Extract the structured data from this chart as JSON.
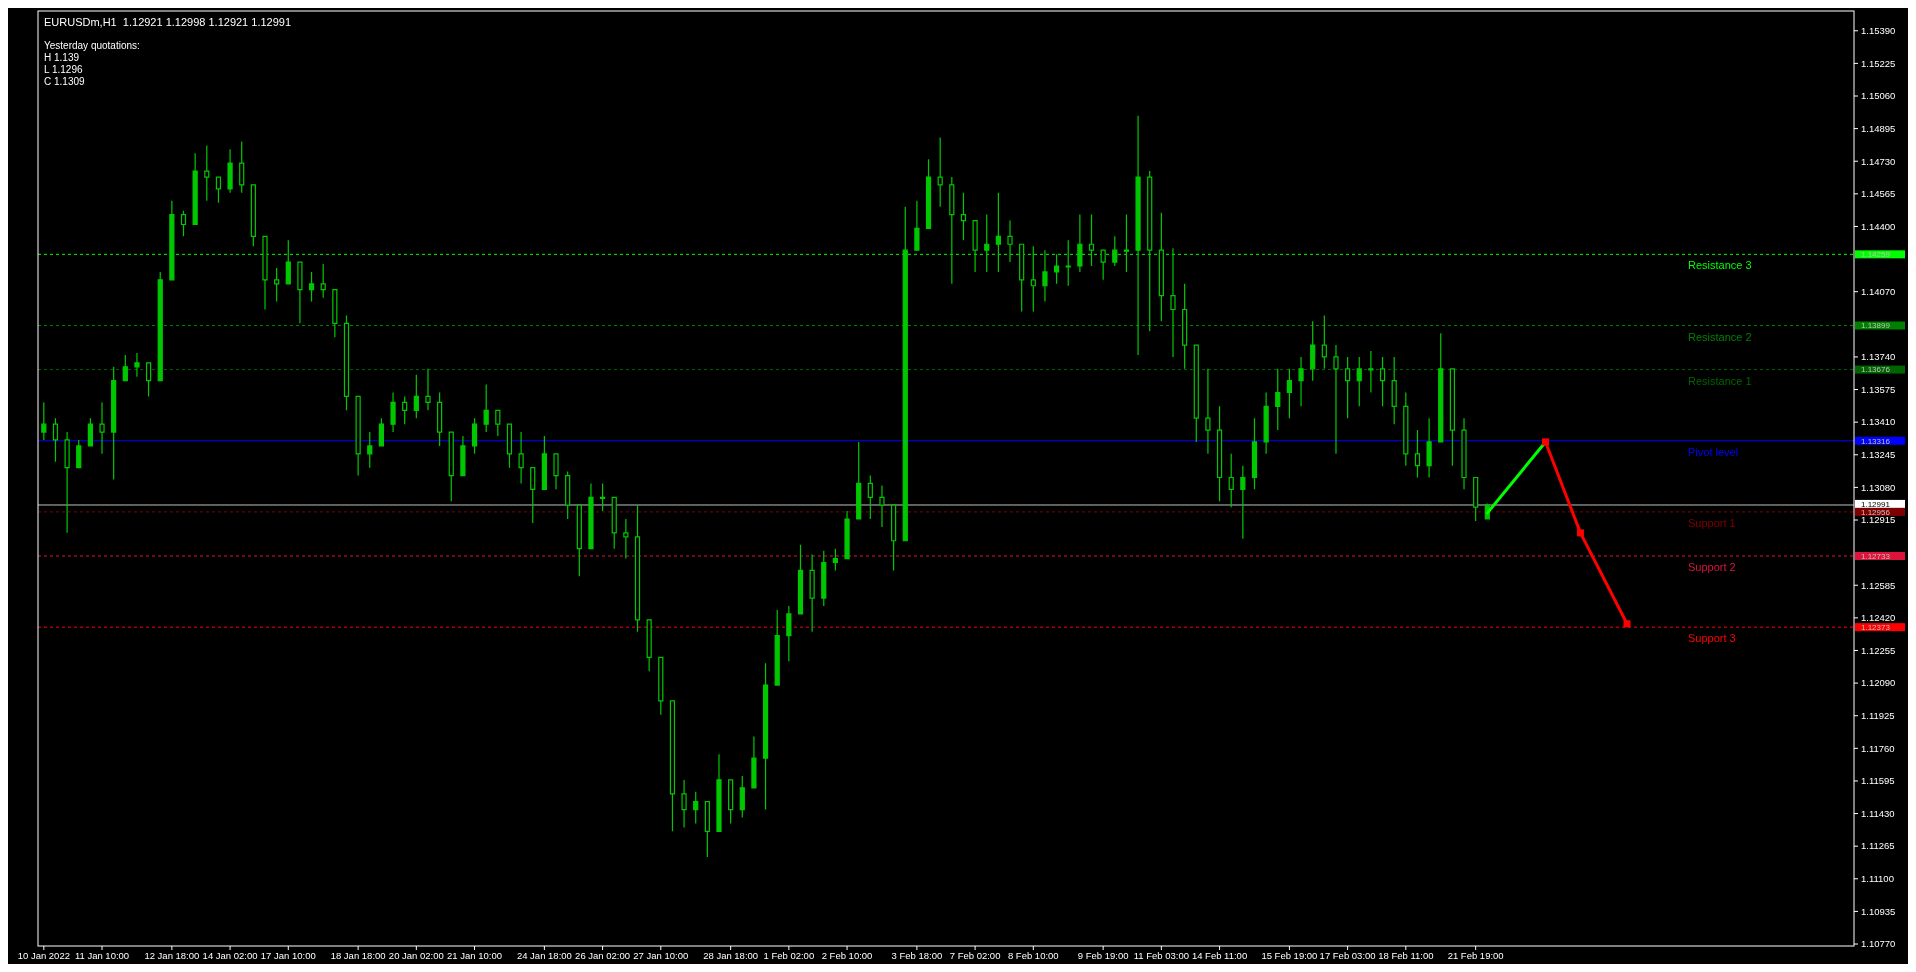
{
  "chart_data": {
    "type": "candlestick",
    "title": "EURUSDm,H1  1.12921 1.12998 1.12921 1.12991",
    "color": "#00c800",
    "grid": false,
    "annotations": [
      "Yesterday quotations:",
      "H 1.139",
      "L 1.1296",
      "C 1.1309",
      "1.14259",
      "1.13899",
      "1.13676",
      "1.13316",
      "1.12991",
      "1.12956",
      "1.12733",
      "1.12373"
    ],
    "ylim": [
      1.1076,
      1.1549
    ],
    "categories": [
      "10 Jan 2022",
      null,
      null,
      null,
      null,
      "11 Jan 10:00",
      null,
      null,
      null,
      null,
      null,
      "12 Jan 18:00",
      null,
      null,
      null,
      null,
      "14 Jan 02:00",
      null,
      null,
      null,
      null,
      "17 Jan 10:00",
      null,
      null,
      null,
      null,
      null,
      "18 Jan 18:00",
      null,
      null,
      null,
      null,
      "20 Jan 02:00",
      null,
      null,
      null,
      null,
      "21 Jan 10:00",
      null,
      null,
      null,
      null,
      null,
      "24 Jan 18:00",
      null,
      null,
      null,
      null,
      "26 Jan 02:00",
      null,
      null,
      null,
      null,
      "27 Jan 10:00",
      null,
      null,
      null,
      null,
      null,
      "28 Jan 18:00",
      null,
      null,
      null,
      null,
      "1 Feb 02:00",
      null,
      null,
      null,
      null,
      "2 Feb 10:00",
      null,
      null,
      null,
      null,
      null,
      "3 Feb 18:00",
      null,
      null,
      null,
      null,
      "7 Feb 02:00",
      null,
      null,
      null,
      null,
      "8 Feb 10:00",
      null,
      null,
      null,
      null,
      null,
      "9 Feb 19:00",
      null,
      null,
      null,
      null,
      "11 Feb 03:00",
      null,
      null,
      null,
      null,
      "14 Feb 11:00",
      null,
      null,
      null,
      null,
      null,
      "15 Feb 19:00",
      null,
      null,
      null,
      null,
      "17 Feb 03:00",
      null,
      null,
      null,
      null,
      "18 Feb 11:00",
      null,
      null,
      null,
      null,
      null,
      "21 Feb 19:00",
      null,
      null,
      null,
      null,
      null,
      null,
      null,
      null,
      null,
      null,
      null,
      null,
      null,
      null,
      null,
      null,
      null,
      null,
      null,
      null,
      null,
      null,
      null,
      null,
      null,
      null,
      null,
      null,
      null,
      null,
      null,
      null
    ],
    "yticks": [
      {
        "value": 1.1539,
        "label": "1.15390"
      },
      {
        "value": 1.15225,
        "label": "1.15225"
      },
      {
        "value": 1.1506,
        "label": "1.15060"
      },
      {
        "value": 1.14895,
        "label": "1.14895"
      },
      {
        "value": 1.1473,
        "label": "1.14730"
      },
      {
        "value": 1.14565,
        "label": "1.14565"
      },
      {
        "value": 1.144,
        "label": "1.14400"
      },
      {
        "value": 1.1407,
        "label": "1.14070"
      },
      {
        "value": 1.1374,
        "label": "1.13740"
      },
      {
        "value": 1.13575,
        "label": "1.13575"
      },
      {
        "value": 1.1341,
        "label": "1.13410"
      },
      {
        "value": 1.13245,
        "label": "1.13245"
      },
      {
        "value": 1.1308,
        "label": "1.13080"
      },
      {
        "value": 1.12915,
        "label": "1.12915"
      },
      {
        "value": 1.12585,
        "label": "1.12585"
      },
      {
        "value": 1.1242,
        "label": "1.12420"
      },
      {
        "value": 1.12255,
        "label": "1.12255"
      },
      {
        "value": 1.1209,
        "label": "1.12090"
      },
      {
        "value": 1.11925,
        "label": "1.11925"
      },
      {
        "value": 1.1176,
        "label": "1.11760"
      },
      {
        "value": 1.11595,
        "label": "1.11595"
      },
      {
        "value": 1.1143,
        "label": "1.11430"
      },
      {
        "value": 1.11265,
        "label": "1.11265"
      },
      {
        "value": 1.111,
        "label": "1.11100"
      },
      {
        "value": 1.10935,
        "label": "1.10935"
      },
      {
        "value": 1.1077,
        "label": "1.10770"
      }
    ],
    "ref_lines": [
      {
        "axis": "y",
        "value": 1.14259,
        "label": "Resistance 3",
        "color": "#00ff00",
        "line_style": "dashed"
      },
      {
        "axis": "y",
        "value": 1.13899,
        "label": "Resistance 2",
        "color": "#008000",
        "line_style": "dashed"
      },
      {
        "axis": "y",
        "value": 1.13676,
        "label": "Resistance 1",
        "color": "#006400",
        "line_style": "dashed"
      },
      {
        "axis": "y",
        "value": 1.13316,
        "label": "Pivot level",
        "color": "#0000ff",
        "line_style": "solid"
      },
      {
        "axis": "y",
        "value": 1.12991,
        "label": null,
        "color": "#c0c0c0",
        "line_style": "solid"
      },
      {
        "axis": "y",
        "value": 1.12956,
        "label": "Support 1",
        "color": "#800000",
        "line_style": "dashed"
      },
      {
        "axis": "y",
        "value": 1.12733,
        "label": "Support 2",
        "color": "#dc143c",
        "line_style": "dashed"
      },
      {
        "axis": "y",
        "value": 1.12373,
        "label": "Support 3",
        "color": "#ff0000",
        "line_style": "dashed"
      }
    ],
    "series": [
      {
        "type": "line",
        "color": "#00ff00",
        "marker": "none",
        "values": [
          null,
          null,
          null,
          null,
          null,
          null,
          null,
          null,
          null,
          null,
          null,
          null,
          null,
          null,
          null,
          null,
          null,
          null,
          null,
          null,
          null,
          null,
          null,
          null,
          null,
          null,
          null,
          null,
          null,
          null,
          null,
          null,
          null,
          null,
          null,
          null,
          null,
          null,
          null,
          null,
          null,
          null,
          null,
          null,
          null,
          null,
          null,
          null,
          null,
          null,
          null,
          null,
          null,
          null,
          null,
          null,
          null,
          null,
          null,
          null,
          null,
          null,
          null,
          null,
          null,
          null,
          null,
          null,
          null,
          null,
          null,
          null,
          null,
          null,
          null,
          null,
          null,
          null,
          null,
          null,
          null,
          null,
          null,
          null,
          null,
          null,
          null,
          null,
          null,
          null,
          null,
          null,
          null,
          null,
          null,
          null,
          null,
          null,
          null,
          null,
          null,
          null,
          null,
          null,
          null,
          null,
          null,
          null,
          null,
          null,
          null,
          null,
          null,
          null,
          null,
          null,
          null,
          null,
          null,
          null,
          null,
          null,
          null,
          null,
          1.1295,
          null,
          null,
          null,
          null,
          1.1331,
          null,
          null,
          null,
          null,
          null,
          null,
          null,
          null,
          null,
          null,
          null,
          null,
          null,
          null,
          null,
          null,
          null,
          null,
          null,
          null,
          null,
          null,
          null,
          null,
          null,
          null
        ]
      },
      {
        "type": "line",
        "color": "#ff0000",
        "marker": "square",
        "values": [
          null,
          null,
          null,
          null,
          null,
          null,
          null,
          null,
          null,
          null,
          null,
          null,
          null,
          null,
          null,
          null,
          null,
          null,
          null,
          null,
          null,
          null,
          null,
          null,
          null,
          null,
          null,
          null,
          null,
          null,
          null,
          null,
          null,
          null,
          null,
          null,
          null,
          null,
          null,
          null,
          null,
          null,
          null,
          null,
          null,
          null,
          null,
          null,
          null,
          null,
          null,
          null,
          null,
          null,
          null,
          null,
          null,
          null,
          null,
          null,
          null,
          null,
          null,
          null,
          null,
          null,
          null,
          null,
          null,
          null,
          null,
          null,
          null,
          null,
          null,
          null,
          null,
          null,
          null,
          null,
          null,
          null,
          null,
          null,
          null,
          null,
          null,
          null,
          null,
          null,
          null,
          null,
          null,
          null,
          null,
          null,
          null,
          null,
          null,
          null,
          null,
          null,
          null,
          null,
          null,
          null,
          null,
          null,
          null,
          null,
          null,
          null,
          null,
          null,
          null,
          null,
          null,
          null,
          null,
          null,
          null,
          null,
          null,
          null,
          null,
          null,
          null,
          null,
          null,
          1.1331,
          null,
          null,
          1.1285,
          null,
          null,
          null,
          1.1239,
          null,
          null,
          null,
          null,
          null,
          null,
          null,
          null,
          null,
          null,
          null,
          null,
          null,
          null,
          null,
          null,
          null,
          null,
          null
        ]
      }
    ],
    "ohlc": [
      [
        1.1336,
        1.1351,
        1.1332,
        1.134
      ],
      [
        1.134,
        1.1343,
        1.1321,
        1.1332
      ],
      [
        1.1332,
        1.1336,
        1.1285,
        1.1318
      ],
      [
        1.1318,
        1.1332,
        1.1318,
        1.1329
      ],
      [
        1.1329,
        1.1343,
        1.1329,
        1.134
      ],
      [
        1.134,
        1.1351,
        1.1325,
        1.1336
      ],
      [
        1.1336,
        1.1369,
        1.1312,
        1.1362
      ],
      [
        1.1362,
        1.1375,
        1.1362,
        1.1369
      ],
      [
        1.1369,
        1.1376,
        1.1364,
        1.1371
      ],
      [
        1.1371,
        1.1371,
        1.1354,
        1.1362
      ],
      [
        1.1362,
        1.1417,
        1.1362,
        1.1413
      ],
      [
        1.1413,
        1.1453,
        1.1413,
        1.1446
      ],
      [
        1.1446,
        1.1448,
        1.1435,
        1.1441
      ],
      [
        1.1441,
        1.1477,
        1.1441,
        1.1468
      ],
      [
        1.1468,
        1.1481,
        1.1453,
        1.1465
      ],
      [
        1.1465,
        1.1465,
        1.1452,
        1.1459
      ],
      [
        1.1459,
        1.1479,
        1.1457,
        1.1472
      ],
      [
        1.1472,
        1.1483,
        1.1457,
        1.1461
      ],
      [
        1.1461,
        1.1461,
        1.143,
        1.1435
      ],
      [
        1.1435,
        1.1435,
        1.1398,
        1.1413
      ],
      [
        1.1413,
        1.1419,
        1.1402,
        1.1411
      ],
      [
        1.1411,
        1.1433,
        1.1411,
        1.1422
      ],
      [
        1.1422,
        1.1422,
        1.1391,
        1.1408
      ],
      [
        1.1408,
        1.1417,
        1.1402,
        1.1411
      ],
      [
        1.1411,
        1.1421,
        1.1404,
        1.1408
      ],
      [
        1.1408,
        1.1408,
        1.1384,
        1.1391
      ],
      [
        1.1391,
        1.1395,
        1.1347,
        1.1354
      ],
      [
        1.1354,
        1.1354,
        1.1314,
        1.1325
      ],
      [
        1.1325,
        1.1336,
        1.1318,
        1.1329
      ],
      [
        1.1329,
        1.1343,
        1.1329,
        1.134
      ],
      [
        1.134,
        1.1356,
        1.1336,
        1.1351
      ],
      [
        1.1351,
        1.1354,
        1.134,
        1.1347
      ],
      [
        1.1347,
        1.1365,
        1.1343,
        1.1354
      ],
      [
        1.1354,
        1.1368,
        1.1347,
        1.1351
      ],
      [
        1.1351,
        1.1356,
        1.1329,
        1.1336
      ],
      [
        1.1336,
        1.1336,
        1.1301,
        1.1314
      ],
      [
        1.1314,
        1.1334,
        1.1314,
        1.1329
      ],
      [
        1.1329,
        1.1343,
        1.1325,
        1.134
      ],
      [
        1.134,
        1.136,
        1.1336,
        1.1347
      ],
      [
        1.1347,
        1.1347,
        1.1334,
        1.134
      ],
      [
        1.134,
        1.134,
        1.1318,
        1.1325
      ],
      [
        1.1325,
        1.1336,
        1.131,
        1.1318
      ],
      [
        1.1318,
        1.1318,
        1.129,
        1.1307
      ],
      [
        1.1307,
        1.1334,
        1.1307,
        1.1325
      ],
      [
        1.1325,
        1.1325,
        1.1307,
        1.1314
      ],
      [
        1.1314,
        1.1316,
        1.1292,
        1.1299
      ],
      [
        1.1299,
        1.1299,
        1.1263,
        1.1277
      ],
      [
        1.1277,
        1.131,
        1.1277,
        1.1303
      ],
      [
        1.1303,
        1.131,
        1.1296,
        1.1303
      ],
      [
        1.1303,
        1.1303,
        1.1277,
        1.1285
      ],
      [
        1.1285,
        1.1292,
        1.1272,
        1.1283
      ],
      [
        1.1283,
        1.1299,
        1.1235,
        1.1241
      ],
      [
        1.1241,
        1.1241,
        1.1215,
        1.1222
      ],
      [
        1.1222,
        1.1222,
        1.1193,
        1.12
      ],
      [
        1.12,
        1.12,
        1.1134,
        1.1153
      ],
      [
        1.1153,
        1.116,
        1.1136,
        1.1145
      ],
      [
        1.1145,
        1.1154,
        1.1138,
        1.1149
      ],
      [
        1.1149,
        1.1149,
        1.1121,
        1.1134
      ],
      [
        1.1134,
        1.1173,
        1.1134,
        1.116
      ],
      [
        1.116,
        1.116,
        1.1138,
        1.1145
      ],
      [
        1.1145,
        1.1162,
        1.1141,
        1.1156
      ],
      [
        1.1156,
        1.1182,
        1.1156,
        1.1171
      ],
      [
        1.1171,
        1.1219,
        1.1145,
        1.1208
      ],
      [
        1.1208,
        1.1246,
        1.1208,
        1.1233
      ],
      [
        1.1233,
        1.1248,
        1.122,
        1.1244
      ],
      [
        1.1244,
        1.1279,
        1.1244,
        1.1266
      ],
      [
        1.1266,
        1.1274,
        1.1235,
        1.1252
      ],
      [
        1.1252,
        1.1276,
        1.1248,
        1.127
      ],
      [
        1.127,
        1.1277,
        1.1266,
        1.1272
      ],
      [
        1.1272,
        1.1296,
        1.1272,
        1.1292
      ],
      [
        1.1292,
        1.1331,
        1.1292,
        1.131
      ],
      [
        1.131,
        1.1314,
        1.1292,
        1.1303
      ],
      [
        1.1303,
        1.1309,
        1.1288,
        1.1299
      ],
      [
        1.1299,
        1.1299,
        1.1266,
        1.1281
      ],
      [
        1.1281,
        1.145,
        1.1281,
        1.1428
      ],
      [
        1.1428,
        1.1453,
        1.1428,
        1.1439
      ],
      [
        1.1439,
        1.1474,
        1.1439,
        1.1465
      ],
      [
        1.1465,
        1.1485,
        1.145,
        1.1461
      ],
      [
        1.1461,
        1.1465,
        1.1411,
        1.1446
      ],
      [
        1.1446,
        1.1457,
        1.1433,
        1.1443
      ],
      [
        1.1443,
        1.1443,
        1.1417,
        1.1428
      ],
      [
        1.1428,
        1.1446,
        1.1417,
        1.1431
      ],
      [
        1.1431,
        1.1457,
        1.1417,
        1.1435
      ],
      [
        1.1435,
        1.1443,
        1.1422,
        1.1431
      ],
      [
        1.1431,
        1.1431,
        1.1397,
        1.1413
      ],
      [
        1.1413,
        1.143,
        1.1397,
        1.141
      ],
      [
        1.141,
        1.1428,
        1.1402,
        1.1417
      ],
      [
        1.1417,
        1.1426,
        1.1411,
        1.142
      ],
      [
        1.142,
        1.1433,
        1.141,
        1.142
      ],
      [
        1.142,
        1.1446,
        1.1417,
        1.1431
      ],
      [
        1.1431,
        1.1446,
        1.142,
        1.1428
      ],
      [
        1.1428,
        1.1428,
        1.1413,
        1.1422
      ],
      [
        1.1422,
        1.1435,
        1.142,
        1.1428
      ],
      [
        1.1428,
        1.1446,
        1.1417,
        1.1428
      ],
      [
        1.1428,
        1.1496,
        1.1375,
        1.1465
      ],
      [
        1.1465,
        1.1468,
        1.1387,
        1.1428
      ],
      [
        1.1428,
        1.1447,
        1.1392,
        1.1405
      ],
      [
        1.1405,
        1.1429,
        1.1374,
        1.1398
      ],
      [
        1.1398,
        1.1411,
        1.1368,
        1.138
      ],
      [
        1.138,
        1.138,
        1.1331,
        1.1343
      ],
      [
        1.1343,
        1.1368,
        1.1325,
        1.1337
      ],
      [
        1.1337,
        1.1349,
        1.1301,
        1.1313
      ],
      [
        1.1313,
        1.1325,
        1.1298,
        1.1307
      ],
      [
        1.1307,
        1.1319,
        1.1282,
        1.1313
      ],
      [
        1.1313,
        1.1343,
        1.1307,
        1.1331
      ],
      [
        1.1331,
        1.1356,
        1.1325,
        1.1349
      ],
      [
        1.1349,
        1.1368,
        1.1337,
        1.1356
      ],
      [
        1.1356,
        1.1368,
        1.1343,
        1.1362
      ],
      [
        1.1362,
        1.1374,
        1.1349,
        1.1368
      ],
      [
        1.1368,
        1.1392,
        1.1362,
        1.138
      ],
      [
        1.138,
        1.1395,
        1.1368,
        1.1374
      ],
      [
        1.1374,
        1.138,
        1.1325,
        1.1368
      ],
      [
        1.1368,
        1.1374,
        1.1343,
        1.1362
      ],
      [
        1.1362,
        1.1374,
        1.1349,
        1.1368
      ],
      [
        1.1368,
        1.1377,
        1.1356,
        1.1368
      ],
      [
        1.1368,
        1.1374,
        1.1349,
        1.1362
      ],
      [
        1.1362,
        1.1374,
        1.134,
        1.1349
      ],
      [
        1.1349,
        1.1356,
        1.1319,
        1.1325
      ],
      [
        1.1325,
        1.1337,
        1.1313,
        1.1319
      ],
      [
        1.1319,
        1.1343,
        1.1313,
        1.1331
      ],
      [
        1.1331,
        1.1386,
        1.1331,
        1.1368
      ],
      [
        1.1368,
        1.1368,
        1.1319,
        1.1337
      ],
      [
        1.1337,
        1.1343,
        1.1307,
        1.1313
      ],
      [
        1.1313,
        1.1313,
        1.1291,
        1.1298
      ],
      [
        1.12921,
        1.12998,
        1.12921,
        1.12991
      ],
      null,
      null,
      null,
      null,
      null,
      null,
      null,
      null,
      null,
      null,
      null,
      null,
      null,
      null,
      null,
      null,
      null,
      null,
      null,
      null,
      null,
      null,
      null,
      null,
      null,
      null,
      null,
      null,
      null,
      null,
      null
    ]
  }
}
